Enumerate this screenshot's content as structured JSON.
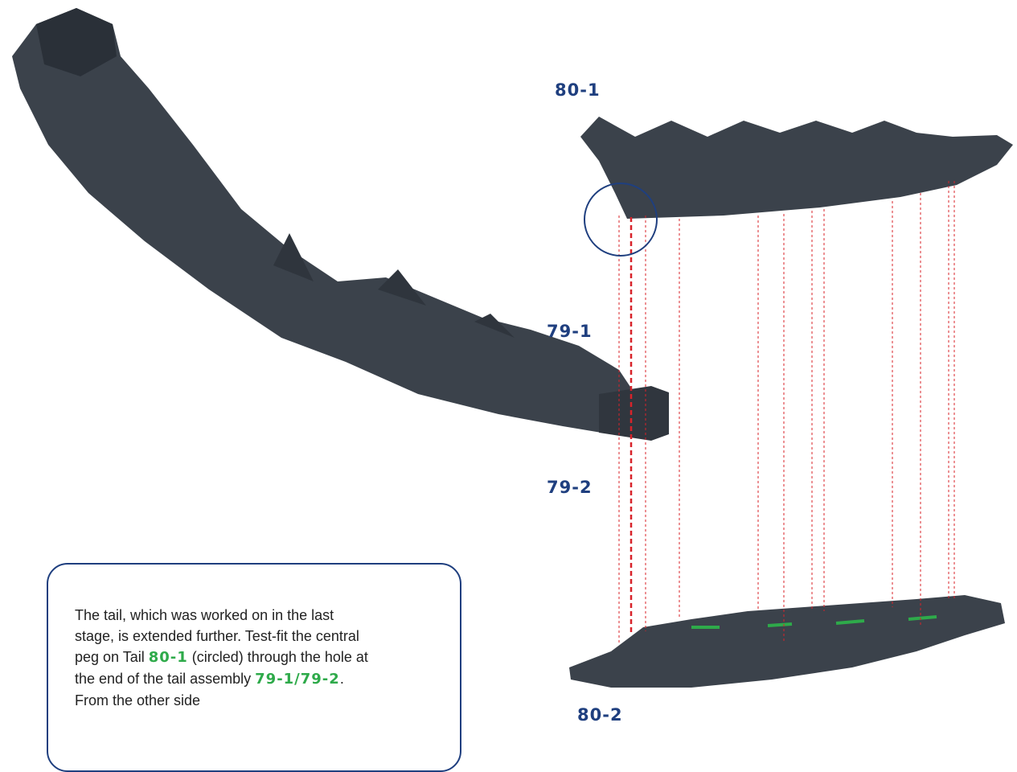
{
  "labels": {
    "part_top": "80-1",
    "part_mid_upper": "79-1",
    "part_mid_lower": "79-2",
    "part_bottom": "80-2"
  },
  "instruction": {
    "segments": [
      "The tail, which was worked on in the last stage, is extended further. Test-fit the central peg on Tail ",
      "80-1",
      " (circled) through the hole at the end of the tail assembly ",
      "79-1/79-2",
      ". From the other side"
    ]
  }
}
